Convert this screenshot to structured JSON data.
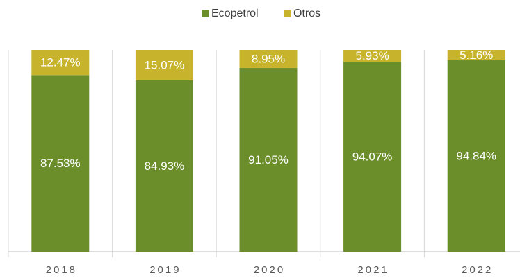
{
  "chart_data": {
    "type": "stacked_bar",
    "categories": [
      "2018",
      "2019",
      "2020",
      "2021",
      "2022"
    ],
    "series": [
      {
        "name": "Ecopetrol",
        "color": "#6b8e2a",
        "values": [
          87.53,
          84.93,
          91.05,
          94.07,
          94.84
        ],
        "value_labels": [
          "87.53%",
          "84.93%",
          "91.05%",
          "94.07%",
          "94.84%"
        ]
      },
      {
        "name": "Otros",
        "color": "#c8b42c",
        "values": [
          12.47,
          15.07,
          8.95,
          5.93,
          5.16
        ],
        "value_labels": [
          "12.47%",
          "15.07%",
          "8.95%",
          "5.93%",
          "5.16%"
        ]
      }
    ],
    "ylim": [
      0,
      100
    ],
    "legend": "top"
  }
}
